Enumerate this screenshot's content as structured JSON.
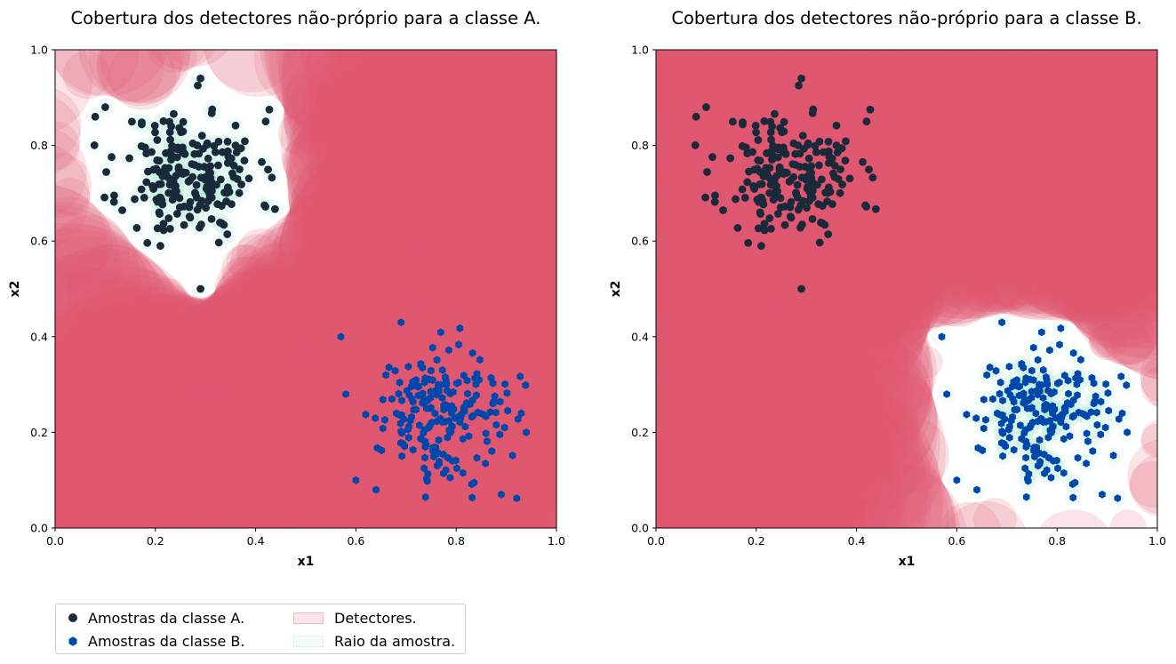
{
  "colors": {
    "class_a": "#1a2a3a",
    "class_b": "#0047ab",
    "detector_fill": "#e05a6e",
    "detector_edge": "#e0607a",
    "radius_fill": "#a8e6cf"
  },
  "chart_data": [
    {
      "type": "scatter",
      "title": "Cobertura dos detectores não-próprio para a classe A.",
      "xlabel": "x1",
      "ylabel": "x2",
      "xlim": [
        0,
        1
      ],
      "ylim": [
        0,
        1
      ],
      "xticks": [
        "0.0",
        "0.2",
        "0.4",
        "0.6",
        "0.8",
        "1.0"
      ],
      "yticks": [
        "0.0",
        "0.2",
        "0.4",
        "0.6",
        "0.8",
        "1.0"
      ],
      "grid": false,
      "self_class": "A",
      "series": [
        {
          "name": "Amostras da classe A.",
          "marker": "circle",
          "center": [
            0.27,
            0.74
          ],
          "spread": 0.068,
          "count": 200,
          "outliers": [
            [
              0.29,
              0.5
            ],
            [
              0.42,
              0.85
            ],
            [
              0.08,
              0.86
            ],
            [
              0.1,
              0.88
            ],
            [
              0.29,
              0.94
            ],
            [
              0.36,
              0.8
            ],
            [
              0.21,
              0.59
            ]
          ]
        },
        {
          "name": "Amostras da classe B.",
          "marker": "hexagon",
          "center": [
            0.76,
            0.24
          ],
          "spread": 0.068,
          "count": 200,
          "outliers": [
            [
              0.57,
              0.4
            ],
            [
              0.58,
              0.28
            ],
            [
              0.6,
              0.1
            ],
            [
              0.64,
              0.08
            ],
            [
              0.69,
              0.43
            ],
            [
              0.89,
              0.07
            ],
            [
              0.93,
              0.24
            ]
          ]
        }
      ]
    },
    {
      "type": "scatter",
      "title": "Cobertura dos detectores não-próprio para a classe B.",
      "xlabel": "x1",
      "ylabel": "x2",
      "xlim": [
        0,
        1
      ],
      "ylim": [
        0,
        1
      ],
      "xticks": [
        "0.0",
        "0.2",
        "0.4",
        "0.6",
        "0.8",
        "1.0"
      ],
      "yticks": [
        "0.0",
        "0.2",
        "0.4",
        "0.6",
        "0.8",
        "1.0"
      ],
      "grid": false,
      "self_class": "B",
      "series": [
        {
          "name": "Amostras da classe A.",
          "marker": "circle",
          "center": [
            0.27,
            0.74
          ],
          "spread": 0.068,
          "count": 200,
          "outliers": [
            [
              0.29,
              0.5
            ],
            [
              0.42,
              0.85
            ],
            [
              0.08,
              0.86
            ],
            [
              0.1,
              0.88
            ],
            [
              0.29,
              0.94
            ],
            [
              0.36,
              0.8
            ],
            [
              0.21,
              0.59
            ]
          ]
        },
        {
          "name": "Amostras da classe B.",
          "marker": "hexagon",
          "center": [
            0.76,
            0.24
          ],
          "spread": 0.068,
          "count": 200,
          "outliers": [
            [
              0.57,
              0.4
            ],
            [
              0.58,
              0.28
            ],
            [
              0.6,
              0.1
            ],
            [
              0.64,
              0.08
            ],
            [
              0.69,
              0.43
            ],
            [
              0.89,
              0.07
            ],
            [
              0.93,
              0.24
            ]
          ]
        }
      ]
    }
  ],
  "legend": {
    "items": [
      {
        "label": "Amostras da classe A.",
        "kind": "circle-marker"
      },
      {
        "label": "Detectores.",
        "kind": "detector-patch"
      },
      {
        "label": "Amostras da classe B.",
        "kind": "hexagon-marker"
      },
      {
        "label": "Raio da amostra.",
        "kind": "radius-patch"
      }
    ],
    "placement": "bottom-left"
  }
}
